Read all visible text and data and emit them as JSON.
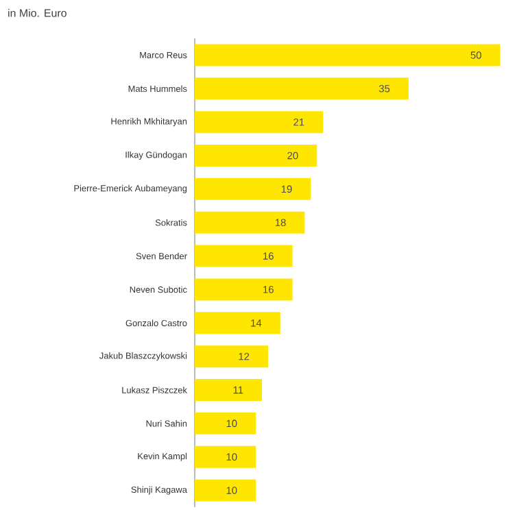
{
  "chart_data": {
    "type": "bar",
    "orientation": "horizontal",
    "title": "in Mio. Euro",
    "categories": [
      "Marco Reus",
      "Mats Hummels",
      "Henrikh Mkhitaryan",
      "Ilkay Gündogan",
      "Pierre-Emerick Aubameyang",
      "Sokratis",
      "Sven Bender",
      "Neven Subotic",
      "Gonzalo Castro",
      "Jakub Blaszczykowski",
      "Lukasz Piszczek",
      "Nuri Sahin",
      "Kevin Kampl",
      "Shinji Kagawa"
    ],
    "values": [
      50,
      35,
      21,
      20,
      19,
      18,
      16,
      16,
      14,
      12,
      11,
      10,
      10,
      10
    ],
    "color": "#ffe600",
    "data_labels": true
  }
}
